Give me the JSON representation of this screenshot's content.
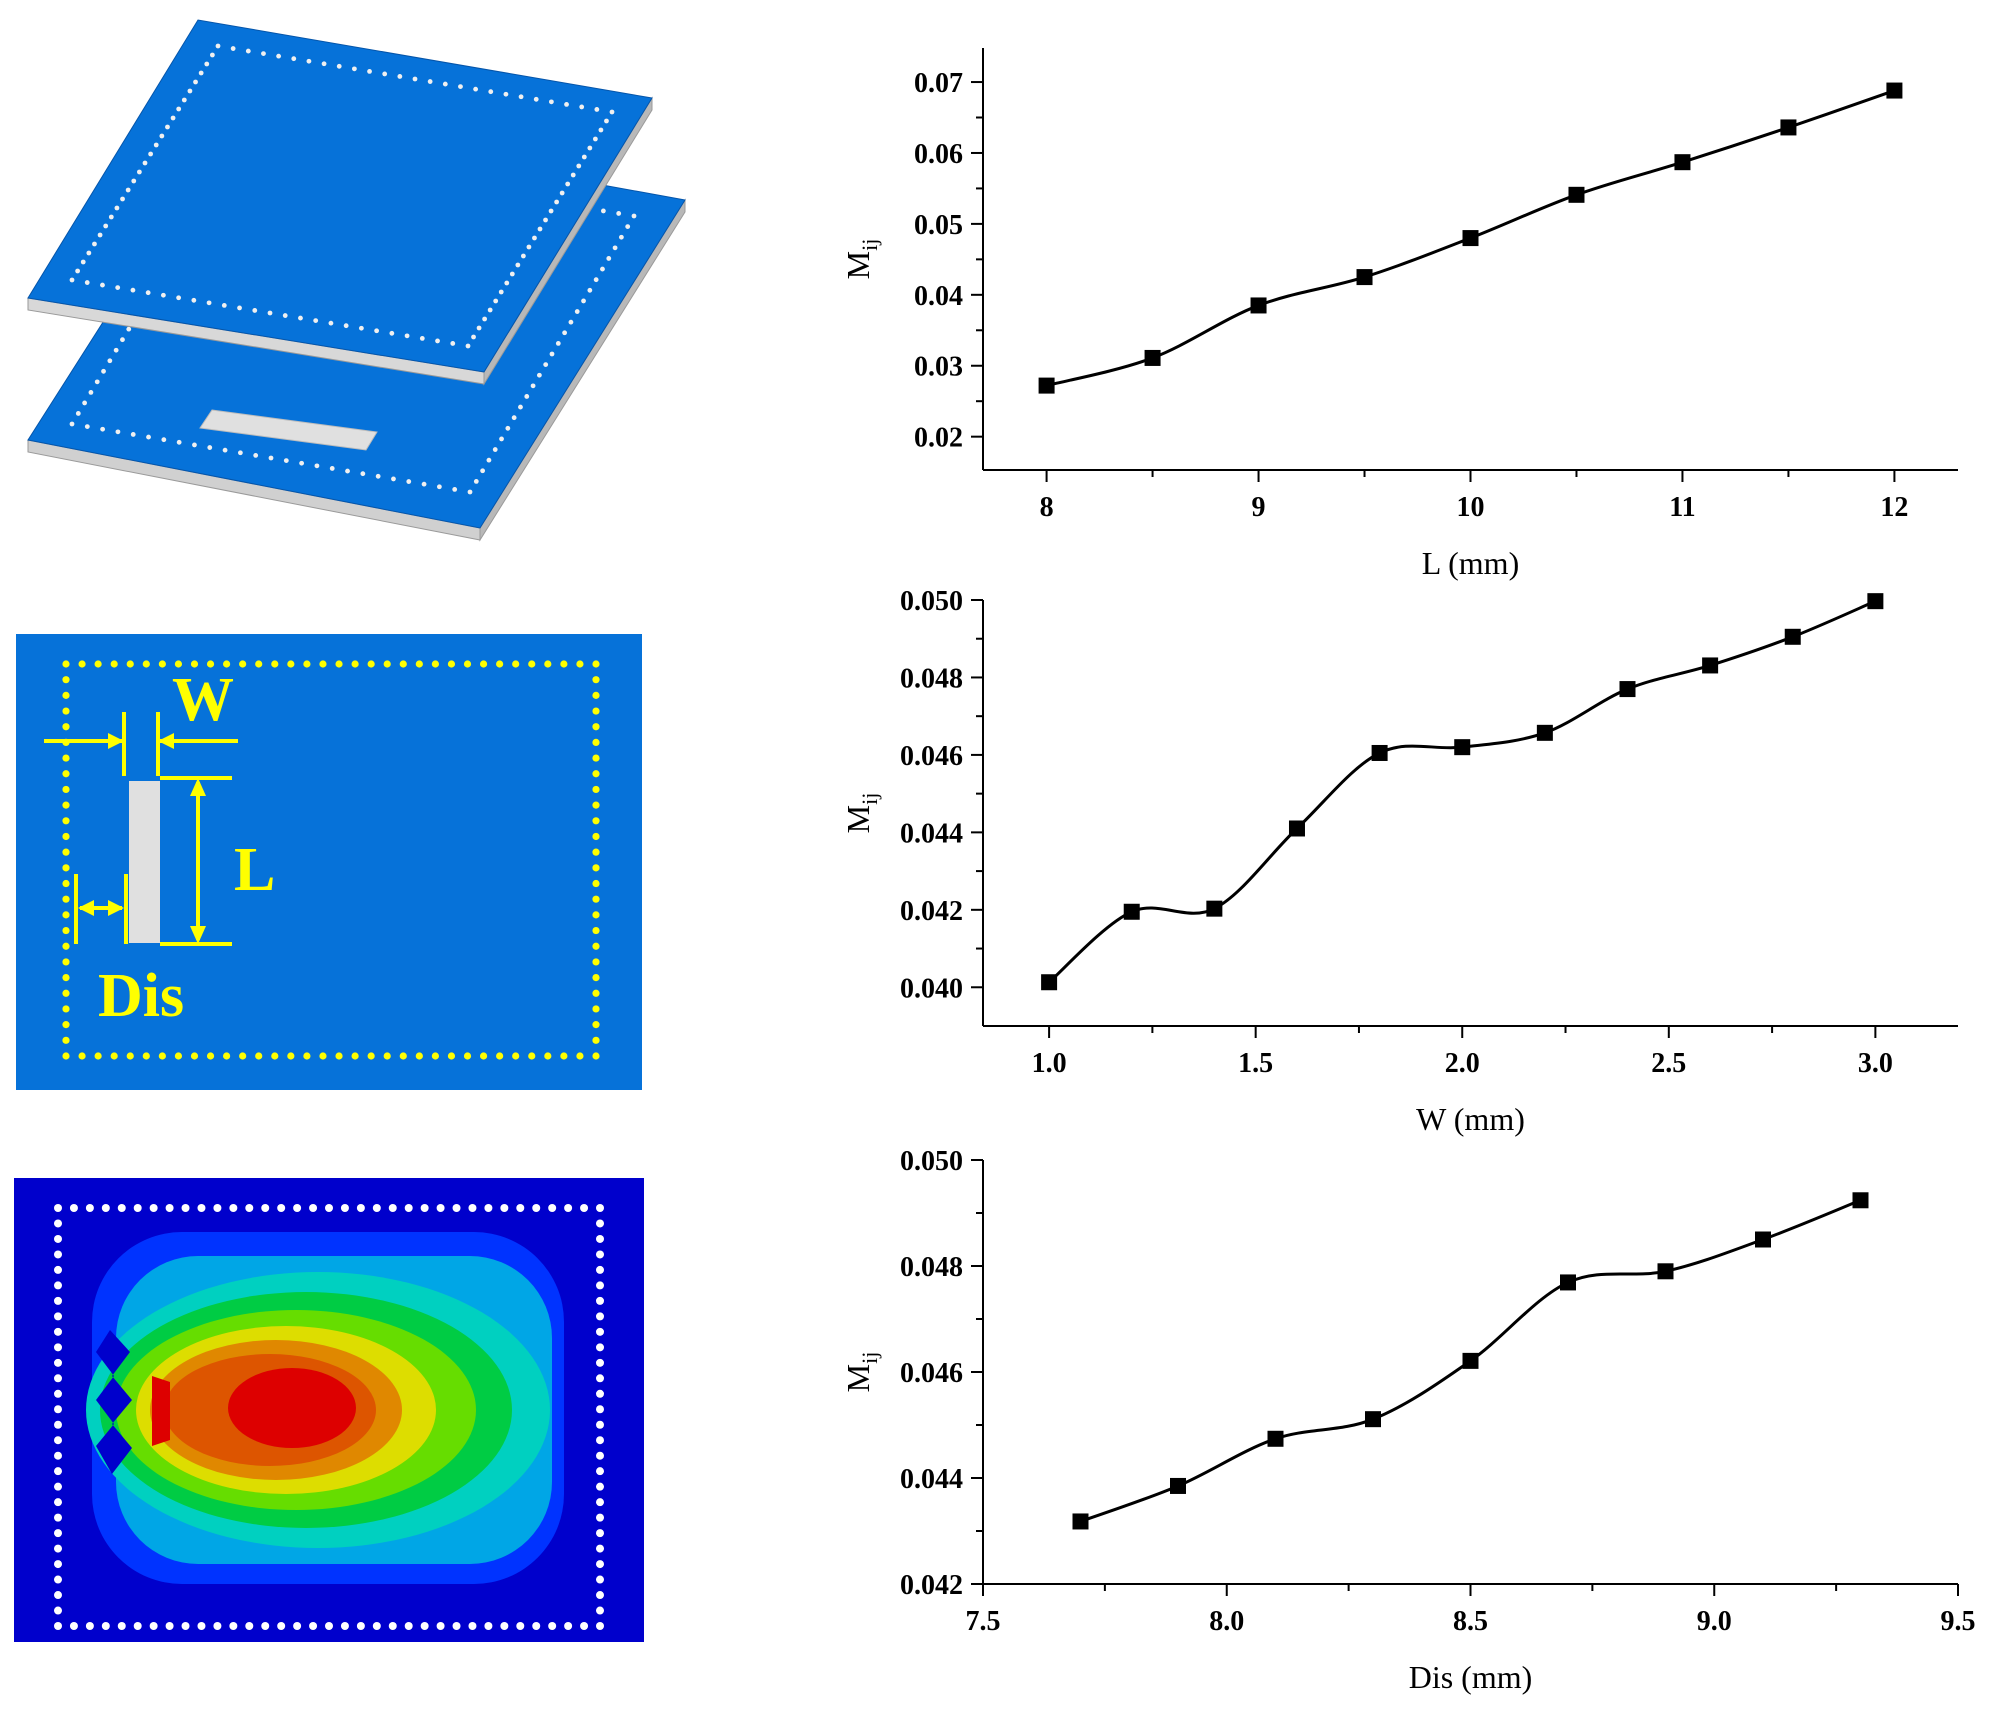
{
  "figure": {
    "diagram": {
      "labels": {
        "w": "W",
        "l": "L",
        "dis": "Dis"
      },
      "colors": {
        "board_blue": "#0672D9",
        "board_edge": "#C8C8C8",
        "via_yellow": "#FFFF00",
        "slot_gray": "#E0E0E0"
      }
    },
    "field_map": {
      "colors": [
        "#0000CC",
        "#0033FF",
        "#00A6E6",
        "#00D0C0",
        "#00CC44",
        "#66DD00",
        "#DDDD00",
        "#E08800",
        "#DD5500",
        "#DD0000"
      ]
    }
  },
  "chart_data": [
    {
      "type": "line",
      "xlabel": "L (mm)",
      "ylabel": "M",
      "ylabel_sub": "ij",
      "x": [
        8,
        8.5,
        9,
        9.5,
        10,
        10.5,
        11,
        11.5,
        12
      ],
      "y": [
        0.0272,
        0.0311,
        0.0385,
        0.0425,
        0.048,
        0.0541,
        0.0587,
        0.0636,
        0.0688
      ],
      "xlim": [
        7.7,
        12.3
      ],
      "ylim": [
        0.0153,
        0.0748
      ],
      "xticks": [
        8,
        9,
        10,
        11,
        12
      ],
      "xtick_labels": [
        "8",
        "9",
        "10",
        "11",
        "12"
      ],
      "yticks": [
        0.02,
        0.03,
        0.04,
        0.05,
        0.06,
        0.07
      ],
      "ytick_labels": [
        "0.02",
        "0.03",
        "0.04",
        "0.05",
        "0.06",
        "0.07"
      ],
      "marker": "square",
      "color": "#000000",
      "grid": false
    },
    {
      "type": "line",
      "xlabel": "W (mm)",
      "ylabel": "M",
      "ylabel_sub": "ij",
      "x": [
        1.0,
        1.2,
        1.4,
        1.6,
        1.8,
        2.0,
        2.2,
        2.4,
        2.6,
        2.8,
        3.0
      ],
      "y": [
        0.04013,
        0.04195,
        0.04203,
        0.0441,
        0.04605,
        0.0462,
        0.04657,
        0.0477,
        0.04831,
        0.04905,
        0.04997
      ],
      "xlim": [
        0.84,
        3.2
      ],
      "ylim": [
        0.039,
        0.05
      ],
      "xticks": [
        1.0,
        1.5,
        2.0,
        2.5,
        3.0
      ],
      "xtick_labels": [
        "1.0",
        "1.5",
        "2.0",
        "2.5",
        "3.0"
      ],
      "yticks": [
        0.04,
        0.042,
        0.044,
        0.046,
        0.048,
        0.05
      ],
      "ytick_labels": [
        "0.040",
        "0.042",
        "0.044",
        "0.046",
        "0.048",
        "0.050"
      ],
      "marker": "square",
      "color": "#000000",
      "grid": false
    },
    {
      "type": "line",
      "xlabel": "Dis (mm)",
      "ylabel": "M",
      "ylabel_sub": "ij",
      "x": [
        7.7,
        7.9,
        8.1,
        8.3,
        8.5,
        8.7,
        8.9,
        9.1,
        9.3
      ],
      "y": [
        0.04318,
        0.04385,
        0.04474,
        0.04511,
        0.04621,
        0.04769,
        0.0479,
        0.0485,
        0.04924
      ],
      "xlim": [
        7.5,
        9.5
      ],
      "ylim": [
        0.042,
        0.05
      ],
      "xticks": [
        7.5,
        8.0,
        8.5,
        9.0,
        9.5
      ],
      "xtick_labels": [
        "7.5",
        "8.0",
        "8.5",
        "9.0",
        "9.5"
      ],
      "yticks": [
        0.042,
        0.044,
        0.046,
        0.048,
        0.05
      ],
      "ytick_labels": [
        "0.042",
        "0.044",
        "0.046",
        "0.048",
        "0.050"
      ],
      "marker": "square",
      "color": "#000000",
      "grid": false
    }
  ]
}
